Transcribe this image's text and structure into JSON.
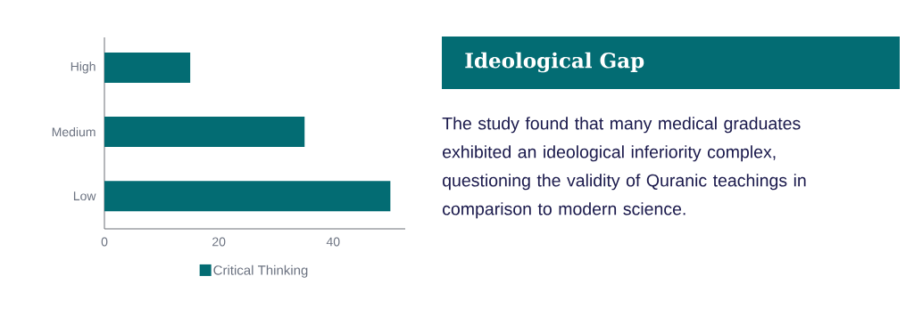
{
  "chart_data": [
    {
      "type": "bar",
      "orientation": "horizontal",
      "categories": [
        "High",
        "Medium",
        "Low"
      ],
      "series": [
        {
          "name": "Critical Thinking",
          "color": "#036c73",
          "values": [
            15,
            35,
            50
          ]
        }
      ],
      "xlim": [
        0,
        52.6
      ],
      "xticks": [
        0,
        20,
        40
      ],
      "legend": "bottom"
    },
    {
      "type": "other",
      "title": "Ideological Gap",
      "annotations": [
        "The study found that many medical graduates exhibited an ideological inferiority complex, questioning the validity of Quranic teachings in comparison to modern science."
      ]
    }
  ]
}
